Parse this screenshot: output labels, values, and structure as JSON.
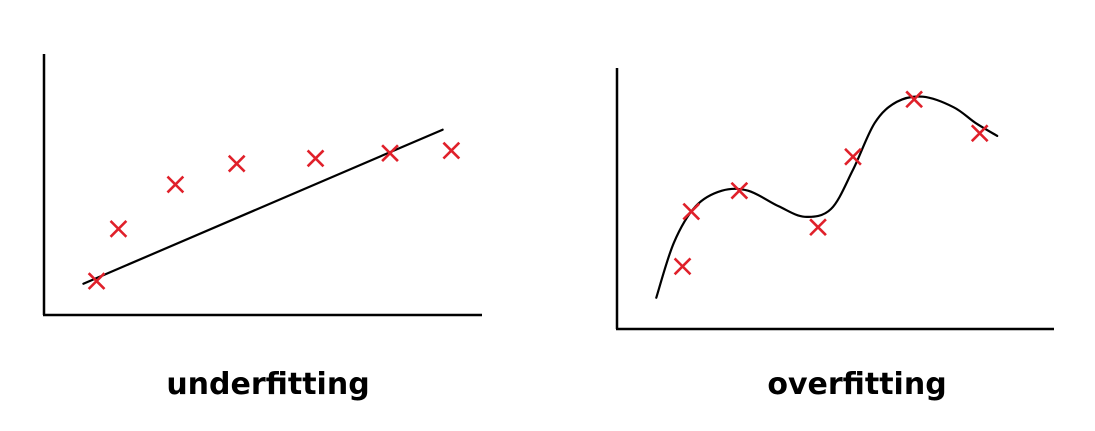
{
  "colors": {
    "axes": "#000000",
    "curve": "#000000",
    "marker": "#e0202a",
    "caption": "#000000"
  },
  "chart_data": [
    {
      "type": "scatter",
      "caption": "underfitting",
      "xlabel": "",
      "ylabel": "",
      "xlim": [
        0,
        10
      ],
      "ylim": [
        0,
        10
      ],
      "grid": false,
      "legend": "none",
      "marker": "x",
      "points": [
        {
          "x": 1.2,
          "y": 1.3
        },
        {
          "x": 1.7,
          "y": 3.3
        },
        {
          "x": 3.0,
          "y": 5.0
        },
        {
          "x": 4.4,
          "y": 5.8
        },
        {
          "x": 6.2,
          "y": 6.0
        },
        {
          "x": 7.9,
          "y": 6.2
        },
        {
          "x": 9.3,
          "y": 6.3
        }
      ],
      "fit": {
        "kind": "linear",
        "points": [
          {
            "x": 0.9,
            "y": 1.2
          },
          {
            "x": 9.1,
            "y": 7.1
          }
        ]
      }
    },
    {
      "type": "scatter",
      "caption": "overfitting",
      "xlabel": "",
      "ylabel": "",
      "xlim": [
        0,
        10
      ],
      "ylim": [
        0,
        10
      ],
      "grid": false,
      "legend": "none",
      "marker": "x",
      "points": [
        {
          "x": 1.5,
          "y": 2.4
        },
        {
          "x": 1.7,
          "y": 4.5
        },
        {
          "x": 2.8,
          "y": 5.3
        },
        {
          "x": 4.6,
          "y": 3.9
        },
        {
          "x": 5.4,
          "y": 6.6
        },
        {
          "x": 6.8,
          "y": 8.8
        },
        {
          "x": 8.3,
          "y": 7.5
        }
      ],
      "fit": {
        "kind": "polynomial",
        "points": [
          {
            "x": 0.9,
            "y": 1.2
          },
          {
            "x": 1.3,
            "y": 3.3
          },
          {
            "x": 1.8,
            "y": 4.7
          },
          {
            "x": 2.4,
            "y": 5.3
          },
          {
            "x": 3.0,
            "y": 5.3
          },
          {
            "x": 3.7,
            "y": 4.7
          },
          {
            "x": 4.3,
            "y": 4.3
          },
          {
            "x": 4.9,
            "y": 4.6
          },
          {
            "x": 5.4,
            "y": 6.1
          },
          {
            "x": 5.9,
            "y": 7.9
          },
          {
            "x": 6.4,
            "y": 8.7
          },
          {
            "x": 7.0,
            "y": 8.9
          },
          {
            "x": 7.7,
            "y": 8.5
          },
          {
            "x": 8.2,
            "y": 7.9
          },
          {
            "x": 8.7,
            "y": 7.4
          }
        ]
      }
    }
  ]
}
